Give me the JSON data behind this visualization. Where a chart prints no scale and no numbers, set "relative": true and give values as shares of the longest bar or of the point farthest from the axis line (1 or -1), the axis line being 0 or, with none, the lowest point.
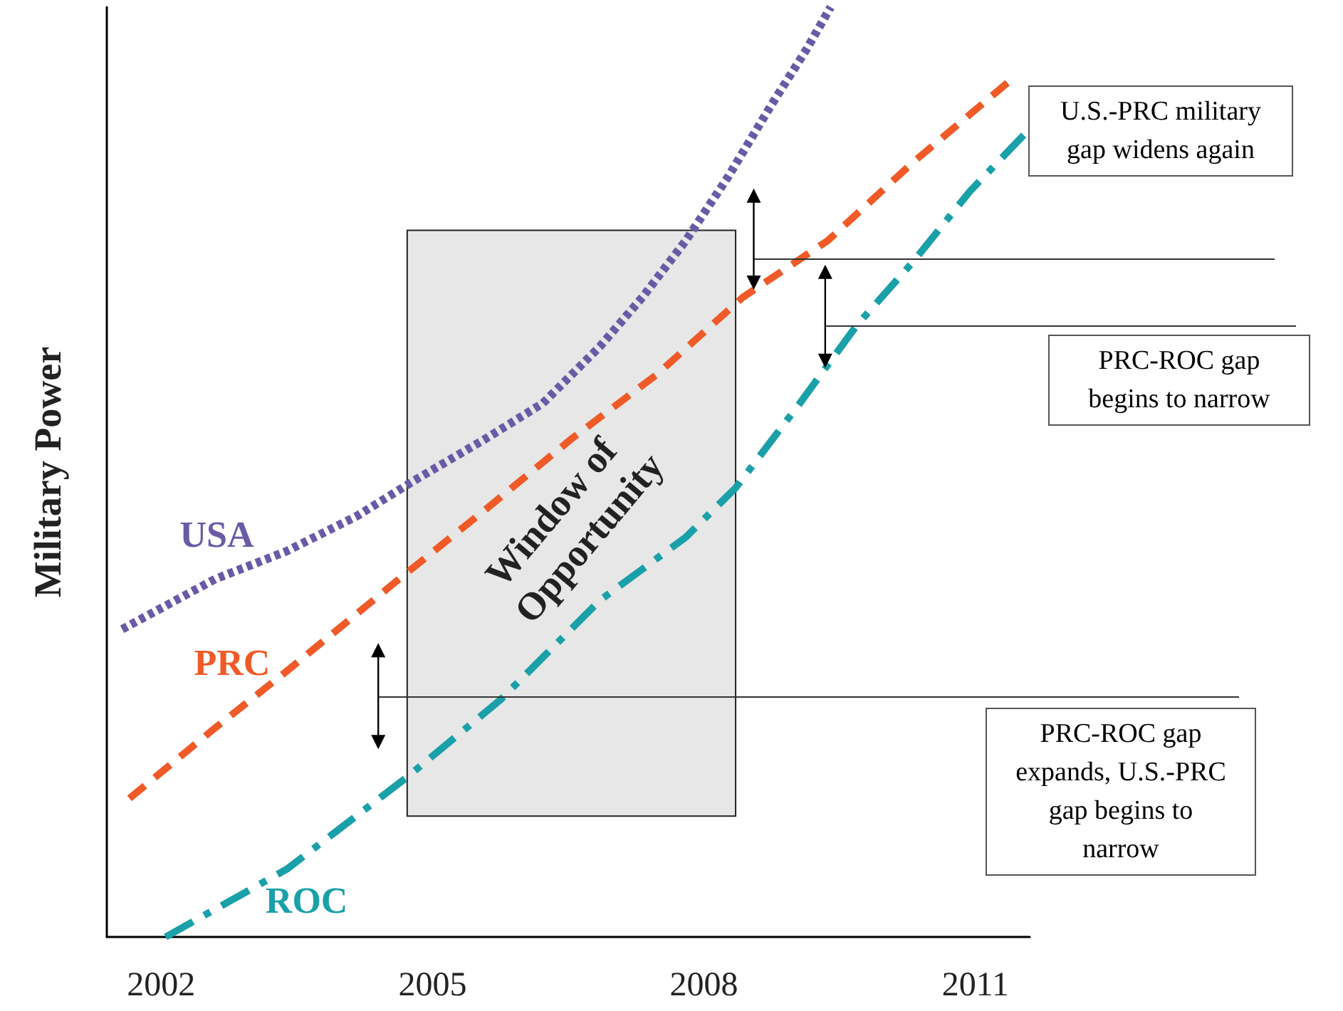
{
  "chart_data": {
    "type": "line",
    "relative": true,
    "ylabel": "Military Power",
    "xlim": [
      2001.4,
      2011.6
    ],
    "xticks": [
      2002,
      2005,
      2008,
      2011
    ],
    "grid": false,
    "legend": false,
    "series": [
      {
        "name": "USA",
        "color": "#6a5aa6",
        "line_style": "dotted",
        "x": [
          2001.57,
          2002.6,
          2003.39,
          2004.17,
          2004.8,
          2005.59,
          2006.22,
          2006.85,
          2007.32,
          2007.8,
          2008.27,
          2008.74,
          2009.13,
          2009.4
        ],
        "values": [
          0.331,
          0.385,
          0.415,
          0.453,
          0.491,
          0.536,
          0.574,
          0.635,
          0.688,
          0.749,
          0.818,
          0.894,
          0.954,
          1
        ]
      },
      {
        "name": "PRC",
        "color": "#f05a28",
        "line_style": "dashed",
        "x": [
          2001.65,
          2002.6,
          2003.39,
          2004.72,
          2005.59,
          2006.54,
          2007.48,
          2008.43,
          2009.37,
          2010.31,
          2011.42
        ],
        "values": [
          0.149,
          0.225,
          0.286,
          0.392,
          0.46,
          0.536,
          0.605,
          0.688,
          0.749,
          0.833,
          0.924
        ]
      },
      {
        "name": "ROC",
        "color": "#1aa0a8",
        "line_style": "dashdot",
        "x": [
          2002.05,
          2003.39,
          2004.72,
          2005.75,
          2006.85,
          2007.8,
          2008.35,
          2009.06,
          2009.69,
          2010.31,
          2010.94,
          2011.54
        ],
        "values": [
          0,
          0.073,
          0.172,
          0.255,
          0.362,
          0.43,
          0.483,
          0.574,
          0.658,
          0.726,
          0.802,
          0.863
        ]
      }
    ],
    "bands": [
      {
        "axis": "x",
        "from": 2004.72,
        "to": 2008.35,
        "label": "Window of Opportunity",
        "color": "#e6e7e6"
      }
    ],
    "ref_lines": [
      {
        "axis": "y",
        "value": 0.729
      },
      {
        "axis": "y",
        "value": 0.657
      },
      {
        "axis": "y",
        "value": 0.258
      }
    ],
    "annotations": [
      "U.S.-PRC military gap widens again",
      "PRC-ROC gap begins to narrow",
      "PRC-ROC gap expands, U.S.-PRC gap begins to narrow"
    ]
  }
}
